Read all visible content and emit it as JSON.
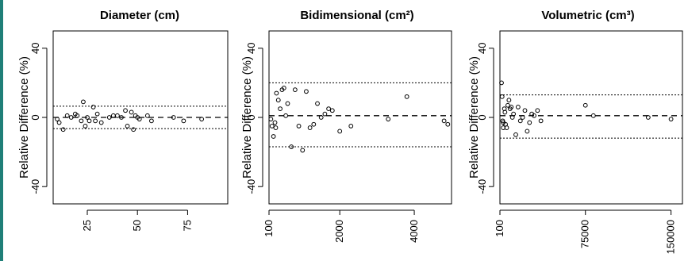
{
  "colors": {
    "accent_strip": "#1f7f78",
    "background": "#ffffff",
    "ink": "#000000"
  },
  "chart_data": [
    {
      "type": "scatter",
      "title": "Diameter (cm)",
      "ylabel": "Relative Difference (%)",
      "xlabel": "",
      "xlim": [
        8,
        95
      ],
      "ylim": [
        -50,
        50
      ],
      "xticks": [
        25,
        50,
        75
      ],
      "yticks": [
        -40,
        0,
        40
      ],
      "lines": {
        "mean": 0,
        "upper_limit": 6.5,
        "lower_limit": -6.5
      },
      "grid": false,
      "points": [
        [
          10,
          -1
        ],
        [
          11,
          -3
        ],
        [
          13,
          -7
        ],
        [
          15,
          1
        ],
        [
          17,
          0
        ],
        [
          19,
          2
        ],
        [
          20,
          1
        ],
        [
          22,
          -2
        ],
        [
          23,
          9
        ],
        [
          24,
          -5
        ],
        [
          25,
          0
        ],
        [
          26,
          -2
        ],
        [
          28,
          6
        ],
        [
          29,
          -2
        ],
        [
          30,
          2
        ],
        [
          32,
          -3
        ],
        [
          36,
          0
        ],
        [
          38,
          1
        ],
        [
          40,
          1
        ],
        [
          42,
          0
        ],
        [
          44,
          4
        ],
        [
          45,
          -5
        ],
        [
          47,
          3
        ],
        [
          48,
          -7
        ],
        [
          49,
          1
        ],
        [
          50,
          0
        ],
        [
          51,
          -1
        ],
        [
          55,
          1
        ],
        [
          57,
          -2
        ],
        [
          68,
          0
        ],
        [
          73,
          -2
        ],
        [
          82,
          -1
        ]
      ]
    },
    {
      "type": "scatter",
      "title": "Bidimensional (cm²)",
      "ylabel": "Relative Difference (%)",
      "xlabel": "",
      "xlim": [
        100,
        5000
      ],
      "ylim": [
        -50,
        50
      ],
      "xticks": [
        100,
        2000,
        4000
      ],
      "yticks": [
        -40,
        0,
        40
      ],
      "lines": {
        "mean": 1,
        "upper_limit": 20,
        "lower_limit": -17
      },
      "grid": false,
      "points": [
        [
          150,
          -1
        ],
        [
          180,
          -5
        ],
        [
          220,
          -11
        ],
        [
          260,
          -3
        ],
        [
          280,
          -6
        ],
        [
          300,
          14
        ],
        [
          350,
          10
        ],
        [
          400,
          5
        ],
        [
          450,
          16
        ],
        [
          500,
          17
        ],
        [
          550,
          1
        ],
        [
          600,
          8
        ],
        [
          700,
          -17
        ],
        [
          800,
          16
        ],
        [
          900,
          -5
        ],
        [
          1000,
          -19
        ],
        [
          1100,
          15
        ],
        [
          1200,
          -6
        ],
        [
          1300,
          -4
        ],
        [
          1400,
          8
        ],
        [
          1500,
          0
        ],
        [
          1600,
          2
        ],
        [
          1700,
          5
        ],
        [
          1800,
          4
        ],
        [
          2000,
          -8
        ],
        [
          2300,
          -5
        ],
        [
          3300,
          -1
        ],
        [
          3800,
          12
        ],
        [
          4800,
          -2
        ],
        [
          4900,
          -4
        ]
      ]
    },
    {
      "type": "scatter",
      "title": "Volumetric (cm³)",
      "ylabel": "Relative Difference (%)",
      "xlabel": "",
      "xlim": [
        100,
        160000
      ],
      "ylim": [
        -50,
        50
      ],
      "xticks": [
        100,
        75000,
        150000
      ],
      "yticks": [
        -40,
        0,
        40
      ],
      "lines": {
        "mean": 1,
        "upper_limit": 13,
        "lower_limit": -12
      },
      "grid": false,
      "points": [
        [
          1500,
          20
        ],
        [
          2000,
          12
        ],
        [
          2500,
          -2
        ],
        [
          3000,
          -6
        ],
        [
          3000,
          -3
        ],
        [
          4000,
          5
        ],
        [
          4500,
          3
        ],
        [
          5000,
          -4
        ],
        [
          6000,
          -6
        ],
        [
          7000,
          7
        ],
        [
          8000,
          10
        ],
        [
          9000,
          5
        ],
        [
          10000,
          6
        ],
        [
          11000,
          0
        ],
        [
          12000,
          2
        ],
        [
          14000,
          -10
        ],
        [
          16000,
          6
        ],
        [
          18000,
          -2
        ],
        [
          20000,
          0
        ],
        [
          22000,
          4
        ],
        [
          24000,
          -8
        ],
        [
          26000,
          -3
        ],
        [
          28000,
          2
        ],
        [
          30000,
          1
        ],
        [
          33000,
          4
        ],
        [
          36000,
          -2
        ],
        [
          75000,
          7
        ],
        [
          82000,
          1
        ],
        [
          130000,
          0
        ],
        [
          150000,
          -1
        ]
      ]
    }
  ]
}
